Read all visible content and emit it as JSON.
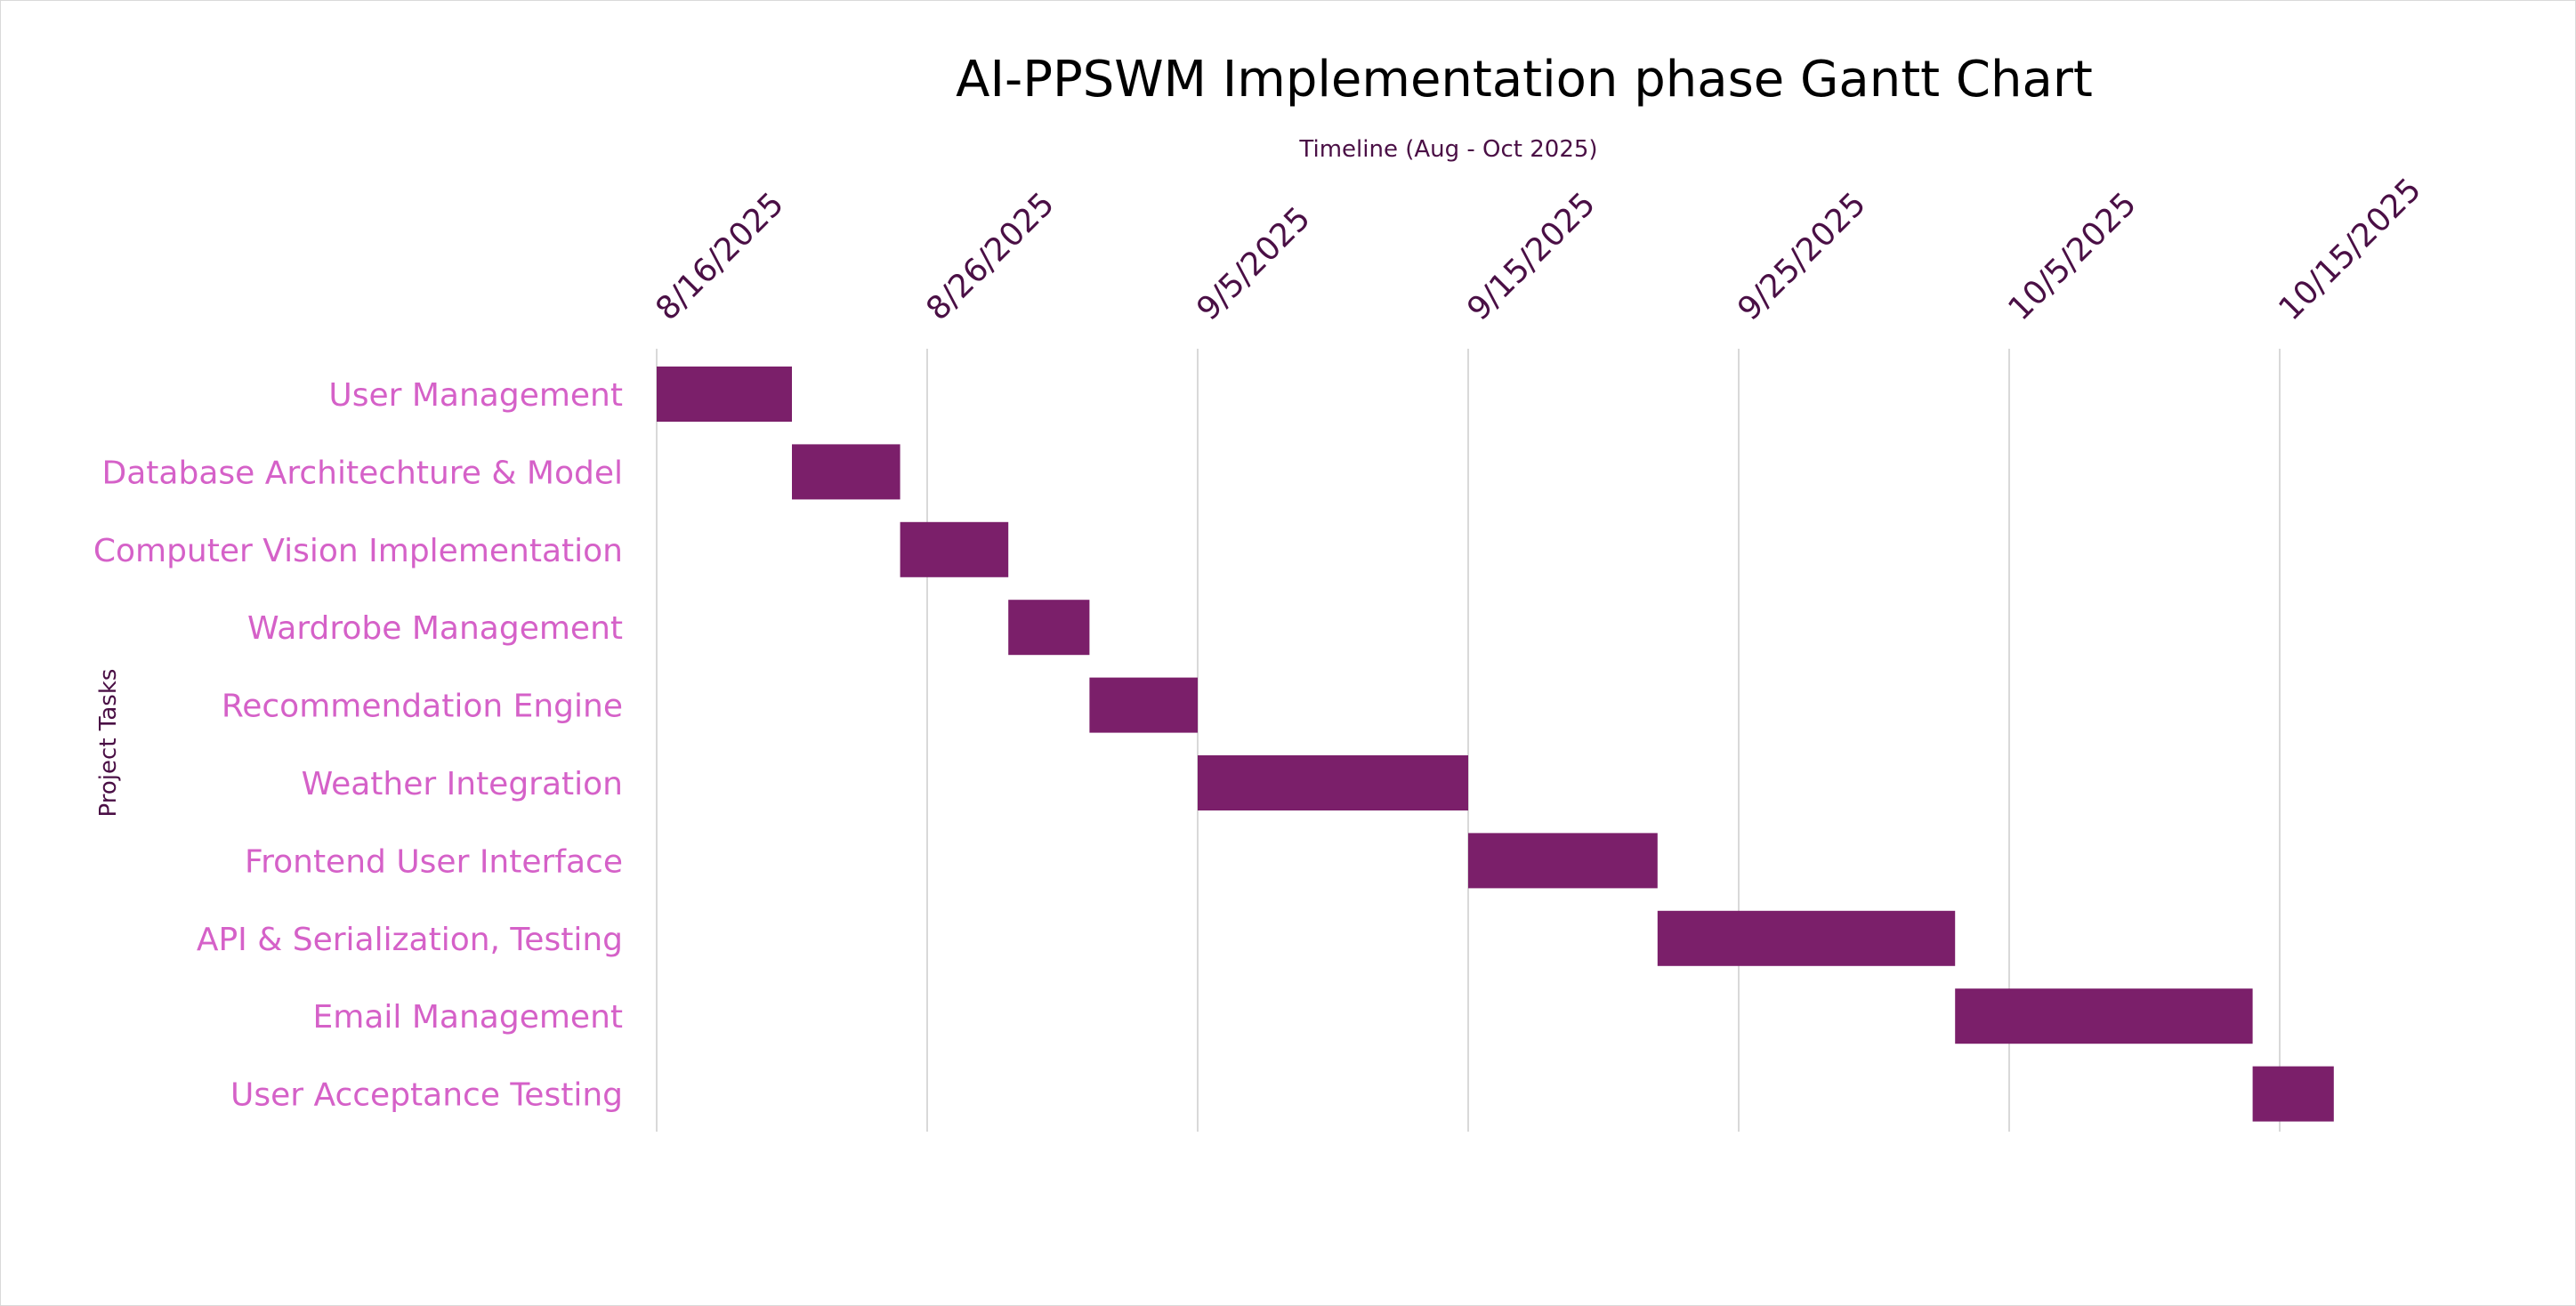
{
  "chart_data": {
    "type": "bar",
    "orientation": "horizontal",
    "subtype": "gantt",
    "title": "AI-PPSWM Implementation phase Gantt Chart",
    "xlabel": "Timeline (Aug - Oct 2025)",
    "ylabel": "Project Tasks",
    "x_axis_type": "date",
    "xlim": [
      "2025-08-16",
      "2025-10-19"
    ],
    "x_ticks": [
      "2025-08-16",
      "2025-08-26",
      "2025-09-05",
      "2025-09-15",
      "2025-09-25",
      "2025-10-05",
      "2025-10-15"
    ],
    "x_tick_labels": [
      "8/16/2025",
      "8/26/2025",
      "9/5/2025",
      "9/15/2025",
      "9/25/2025",
      "10/5/2025",
      "10/15/2025"
    ],
    "x_tick_label_rotation": "-45deg",
    "grid": "vertical",
    "legend": "none",
    "categories": [
      "User Management",
      "Database Architechture & Model",
      "Computer Vision Implementation",
      "Wardrobe Management",
      "Recommendation Engine",
      "Weather Integration",
      "Frontend User Interface",
      "API & Serialization, Testing",
      "Email Management",
      "User Acceptance Testing"
    ],
    "series": [
      {
        "tasks": [
          {
            "start": "2025-08-16",
            "end": "2025-08-21"
          },
          {
            "start": "2025-08-21",
            "end": "2025-08-25"
          },
          {
            "start": "2025-08-25",
            "end": "2025-08-29"
          },
          {
            "start": "2025-08-29",
            "end": "2025-09-01"
          },
          {
            "start": "2025-09-01",
            "end": "2025-09-05"
          },
          {
            "start": "2025-09-05",
            "end": "2025-09-15"
          },
          {
            "start": "2025-09-15",
            "end": "2025-09-22"
          },
          {
            "start": "2025-09-22",
            "end": "2025-10-03"
          },
          {
            "start": "2025-10-03",
            "end": "2025-10-14"
          },
          {
            "start": "2025-10-14",
            "end": "2025-10-17"
          }
        ]
      }
    ],
    "colors": {
      "bar": "#7b1f6a",
      "title": "#000000",
      "axis_title": "#4a0f45",
      "x_tick_label": "#4a0f45",
      "y_tick_label": "#d561c8",
      "gridline": "#d9d9d9"
    }
  }
}
